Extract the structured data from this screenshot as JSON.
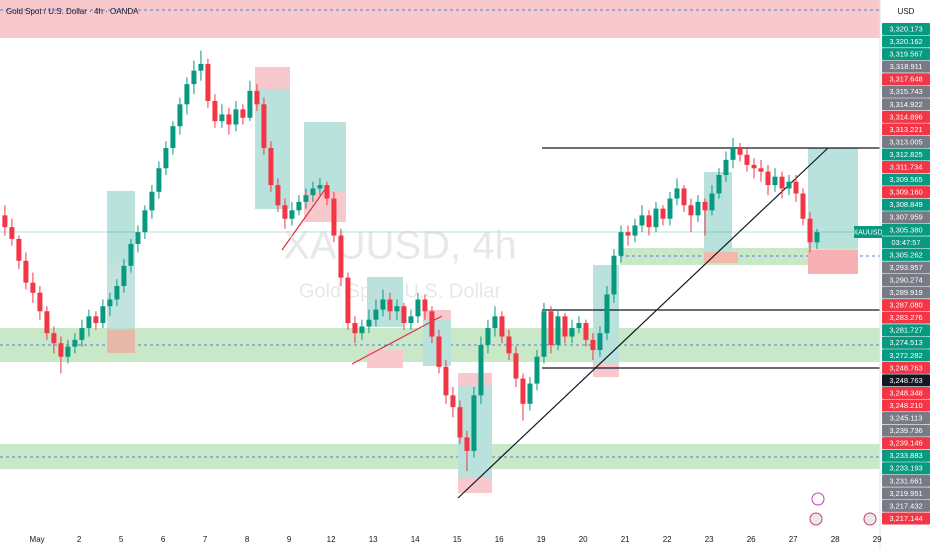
{
  "chart_data": {
    "type": "candlestick",
    "title": "Gold Spot / U.S. Dollar · 4h · OANDA",
    "currency": "USD",
    "watermark": "XAUUSD, 4h",
    "watermark_sub": "Gold Spot / U.S. Dollar",
    "symbol_tag": "XAUUSD",
    "countdown": "03:47:57",
    "up_color": "#089981",
    "down_color": "#f23645",
    "xlim": [
      -0.7,
      125
    ],
    "ylim": [
      3125,
      3440
    ],
    "xticks": [
      {
        "value": 4.6,
        "label": "May"
      },
      {
        "value": 10.6,
        "label": "2"
      },
      {
        "value": 16.6,
        "label": "5"
      },
      {
        "value": 22.6,
        "label": "6"
      },
      {
        "value": 28.6,
        "label": "7"
      },
      {
        "value": 34.6,
        "label": "8"
      },
      {
        "value": 40.6,
        "label": "9"
      },
      {
        "value": 46.6,
        "label": "12"
      },
      {
        "value": 52.6,
        "label": "13"
      },
      {
        "value": 58.6,
        "label": "14"
      },
      {
        "value": 64.6,
        "label": "15"
      },
      {
        "value": 70.6,
        "label": "16"
      },
      {
        "value": 76.6,
        "label": "19"
      },
      {
        "value": 82.6,
        "label": "20"
      },
      {
        "value": 88.6,
        "label": "21"
      },
      {
        "value": 94.6,
        "label": "22"
      },
      {
        "value": 100.6,
        "label": "23"
      },
      {
        "value": 106.6,
        "label": "26"
      },
      {
        "value": 112.6,
        "label": "27"
      },
      {
        "value": 118.6,
        "label": "28"
      },
      {
        "value": 124.6,
        "label": "29"
      }
    ],
    "price_labels": [
      {
        "value": 3320.173,
        "label": "3,320.173",
        "color": "#089981"
      },
      {
        "value": 3320.162,
        "label": "3,320.162",
        "color": "#089981"
      },
      {
        "value": 3319.567,
        "label": "3,319.567",
        "color": "#089981"
      },
      {
        "value": 3318.911,
        "label": "3,318.911",
        "color": "#787b86"
      },
      {
        "value": 3317.648,
        "label": "3,317.648",
        "color": "#f23645"
      },
      {
        "value": 3315.743,
        "label": "3,315.743",
        "color": "#787b86"
      },
      {
        "value": 3314.922,
        "label": "3,314.922",
        "color": "#787b86"
      },
      {
        "value": 3314.896,
        "label": "3,314.896",
        "color": "#f23645"
      },
      {
        "value": 3313.221,
        "label": "3,313.221",
        "color": "#f23645"
      },
      {
        "value": 3313.005,
        "label": "3,313.005",
        "color": "#787b86"
      },
      {
        "value": 3312.825,
        "label": "3,312.825",
        "color": "#089981"
      },
      {
        "value": 3311.734,
        "label": "3,311.734",
        "color": "#f23645"
      },
      {
        "value": 3309.565,
        "label": "3,309.565",
        "color": "#089981"
      },
      {
        "value": 3309.16,
        "label": "3,309.160",
        "color": "#f23645"
      },
      {
        "value": 3308.849,
        "label": "3,308.849",
        "color": "#089981"
      },
      {
        "value": 3307.959,
        "label": "3,307.959",
        "color": "#787b86"
      },
      {
        "value": 3305.38,
        "label": "3,305.380",
        "color": "#089981"
      },
      {
        "value": 3305.262,
        "label": "3,305.262",
        "color": "#089981"
      },
      {
        "value": 3293.957,
        "label": "3,293.957",
        "color": "#787b86"
      },
      {
        "value": 3290.274,
        "label": "3,290.274",
        "color": "#787b86"
      },
      {
        "value": 3289.919,
        "label": "3,289.919",
        "color": "#787b86"
      },
      {
        "value": 3287.08,
        "label": "3,287.080",
        "color": "#f23645"
      },
      {
        "value": 3283.276,
        "label": "3,283.276",
        "color": "#f23645"
      },
      {
        "value": 3281.727,
        "label": "3,281.727",
        "color": "#089981"
      },
      {
        "value": 3274.513,
        "label": "3,274.513",
        "color": "#089981"
      },
      {
        "value": 3272.282,
        "label": "3,272.282",
        "color": "#089981"
      },
      {
        "value": 3248.763,
        "label": "3,248.763",
        "color": "#f23645"
      },
      {
        "value": 3248.763,
        "label": "3,248.763",
        "color": "#131722"
      },
      {
        "value": 3248.348,
        "label": "3,248.348",
        "color": "#f23645"
      },
      {
        "value": 3248.21,
        "label": "3,248.210",
        "color": "#f23645"
      },
      {
        "value": 3245.113,
        "label": "3,245.113",
        "color": "#787b86"
      },
      {
        "value": 3239.736,
        "label": "3,239.736",
        "color": "#787b86"
      },
      {
        "value": 3239.146,
        "label": "3,239.146",
        "color": "#f23645"
      },
      {
        "value": 3233.883,
        "label": "3,233.883",
        "color": "#089981"
      },
      {
        "value": 3233.193,
        "label": "3,233.193",
        "color": "#089981"
      },
      {
        "value": 3231.661,
        "label": "3,231.661",
        "color": "#787b86"
      },
      {
        "value": 3219.951,
        "label": "3,219.951",
        "color": "#787b86"
      },
      {
        "value": 3217.432,
        "label": "3,217.432",
        "color": "#787b86"
      },
      {
        "value": 3217.144,
        "label": "3,217.144",
        "color": "#f23645"
      }
    ],
    "ohlc": [
      [
        3312,
        3318,
        3300,
        3305
      ],
      [
        3305,
        3310,
        3294,
        3298
      ],
      [
        3298,
        3300,
        3280,
        3285
      ],
      [
        3285,
        3290,
        3268,
        3272
      ],
      [
        3272,
        3278,
        3260,
        3266
      ],
      [
        3266,
        3270,
        3250,
        3255
      ],
      [
        3255,
        3258,
        3238,
        3242
      ],
      [
        3242,
        3246,
        3230,
        3236
      ],
      [
        3236,
        3240,
        3218,
        3228
      ],
      [
        3228,
        3238,
        3224,
        3234
      ],
      [
        3234,
        3242,
        3230,
        3238
      ],
      [
        3238,
        3250,
        3234,
        3245
      ],
      [
        3245,
        3256,
        3240,
        3252
      ],
      [
        3252,
        3255,
        3244,
        3248
      ],
      [
        3248,
        3262,
        3245,
        3258
      ],
      [
        3258,
        3266,
        3252,
        3262
      ],
      [
        3262,
        3274,
        3258,
        3270
      ],
      [
        3270,
        3286,
        3266,
        3282
      ],
      [
        3282,
        3298,
        3278,
        3295
      ],
      [
        3295,
        3306,
        3290,
        3302
      ],
      [
        3302,
        3318,
        3298,
        3315
      ],
      [
        3315,
        3330,
        3310,
        3326
      ],
      [
        3326,
        3344,
        3322,
        3340
      ],
      [
        3340,
        3356,
        3336,
        3352
      ],
      [
        3352,
        3368,
        3348,
        3365
      ],
      [
        3365,
        3382,
        3360,
        3378
      ],
      [
        3378,
        3394,
        3372,
        3390
      ],
      [
        3390,
        3404,
        3384,
        3398
      ],
      [
        3398,
        3410,
        3392,
        3402
      ],
      [
        3402,
        3405,
        3376,
        3380
      ],
      [
        3380,
        3384,
        3364,
        3368
      ],
      [
        3368,
        3378,
        3364,
        3372
      ],
      [
        3372,
        3376,
        3360,
        3366
      ],
      [
        3366,
        3380,
        3362,
        3375
      ],
      [
        3375,
        3378,
        3366,
        3370
      ],
      [
        3370,
        3392,
        3368,
        3386
      ],
      [
        3386,
        3390,
        3374,
        3378
      ],
      [
        3378,
        3382,
        3348,
        3352
      ],
      [
        3352,
        3356,
        3326,
        3330
      ],
      [
        3330,
        3334,
        3314,
        3318
      ],
      [
        3318,
        3322,
        3304,
        3310
      ],
      [
        3310,
        3320,
        3306,
        3315
      ],
      [
        3315,
        3324,
        3312,
        3320
      ],
      [
        3320,
        3328,
        3316,
        3324
      ],
      [
        3324,
        3332,
        3320,
        3328
      ],
      [
        3328,
        3334,
        3324,
        3330
      ],
      [
        3330,
        3332,
        3318,
        3322
      ],
      [
        3322,
        3326,
        3296,
        3300
      ],
      [
        3300,
        3304,
        3270,
        3275
      ],
      [
        3275,
        3278,
        3244,
        3248
      ],
      [
        3248,
        3252,
        3236,
        3242
      ],
      [
        3242,
        3250,
        3238,
        3246
      ],
      [
        3246,
        3256,
        3242,
        3250
      ],
      [
        3250,
        3262,
        3246,
        3256
      ],
      [
        3256,
        3268,
        3252,
        3262
      ],
      [
        3262,
        3266,
        3250,
        3255
      ],
      [
        3255,
        3262,
        3250,
        3258
      ],
      [
        3258,
        3260,
        3244,
        3248
      ],
      [
        3248,
        3256,
        3244,
        3252
      ],
      [
        3252,
        3266,
        3248,
        3262
      ],
      [
        3262,
        3265,
        3250,
        3255
      ],
      [
        3255,
        3258,
        3236,
        3240
      ],
      [
        3240,
        3244,
        3218,
        3222
      ],
      [
        3222,
        3226,
        3200,
        3205
      ],
      [
        3205,
        3210,
        3192,
        3198
      ],
      [
        3198,
        3202,
        3176,
        3180
      ],
      [
        3180,
        3184,
        3160,
        3172
      ],
      [
        3172,
        3210,
        3168,
        3205
      ],
      [
        3205,
        3240,
        3200,
        3235
      ],
      [
        3235,
        3250,
        3230,
        3245
      ],
      [
        3245,
        3258,
        3240,
        3252
      ],
      [
        3252,
        3255,
        3236,
        3240
      ],
      [
        3240,
        3244,
        3226,
        3230
      ],
      [
        3230,
        3234,
        3210,
        3215
      ],
      [
        3215,
        3218,
        3190,
        3200
      ],
      [
        3200,
        3216,
        3196,
        3212
      ],
      [
        3212,
        3232,
        3208,
        3228
      ],
      [
        3228,
        3260,
        3224,
        3255
      ],
      [
        3255,
        3258,
        3230,
        3235
      ],
      [
        3235,
        3256,
        3232,
        3252
      ],
      [
        3252,
        3254,
        3236,
        3240
      ],
      [
        3240,
        3250,
        3236,
        3245
      ],
      [
        3245,
        3252,
        3242,
        3248
      ],
      [
        3248,
        3250,
        3234,
        3238
      ],
      [
        3238,
        3242,
        3226,
        3232
      ],
      [
        3232,
        3246,
        3228,
        3242
      ],
      [
        3242,
        3270,
        3238,
        3265
      ],
      [
        3265,
        3292,
        3260,
        3288
      ],
      [
        3288,
        3306,
        3284,
        3302
      ],
      [
        3302,
        3306,
        3294,
        3300
      ],
      [
        3300,
        3310,
        3296,
        3306
      ],
      [
        3306,
        3318,
        3302,
        3312
      ],
      [
        3312,
        3315,
        3300,
        3305
      ],
      [
        3305,
        3320,
        3302,
        3316
      ],
      [
        3316,
        3318,
        3306,
        3310
      ],
      [
        3310,
        3326,
        3306,
        3322
      ],
      [
        3322,
        3334,
        3318,
        3328
      ],
      [
        3328,
        3330,
        3314,
        3318
      ],
      [
        3318,
        3322,
        3302,
        3312
      ],
      [
        3312,
        3324,
        3308,
        3320
      ],
      [
        3320,
        3322,
        3300,
        3315
      ],
      [
        3315,
        3330,
        3312,
        3325
      ],
      [
        3325,
        3340,
        3322,
        3336
      ],
      [
        3336,
        3350,
        3332,
        3345
      ],
      [
        3345,
        3358,
        3340,
        3352
      ],
      [
        3352,
        3355,
        3344,
        3348
      ],
      [
        3348,
        3352,
        3338,
        3342
      ],
      [
        3342,
        3346,
        3334,
        3340
      ],
      [
        3340,
        3345,
        3332,
        3338
      ],
      [
        3338,
        3342,
        3324,
        3330
      ],
      [
        3330,
        3340,
        3326,
        3335
      ],
      [
        3335,
        3338,
        3322,
        3328
      ],
      [
        3328,
        3336,
        3324,
        3332
      ],
      [
        3332,
        3336,
        3320,
        3325
      ],
      [
        3325,
        3328,
        3306,
        3310
      ],
      [
        3310,
        3314,
        3290,
        3296
      ],
      [
        3296,
        3304,
        3292,
        3302
      ]
    ]
  }
}
